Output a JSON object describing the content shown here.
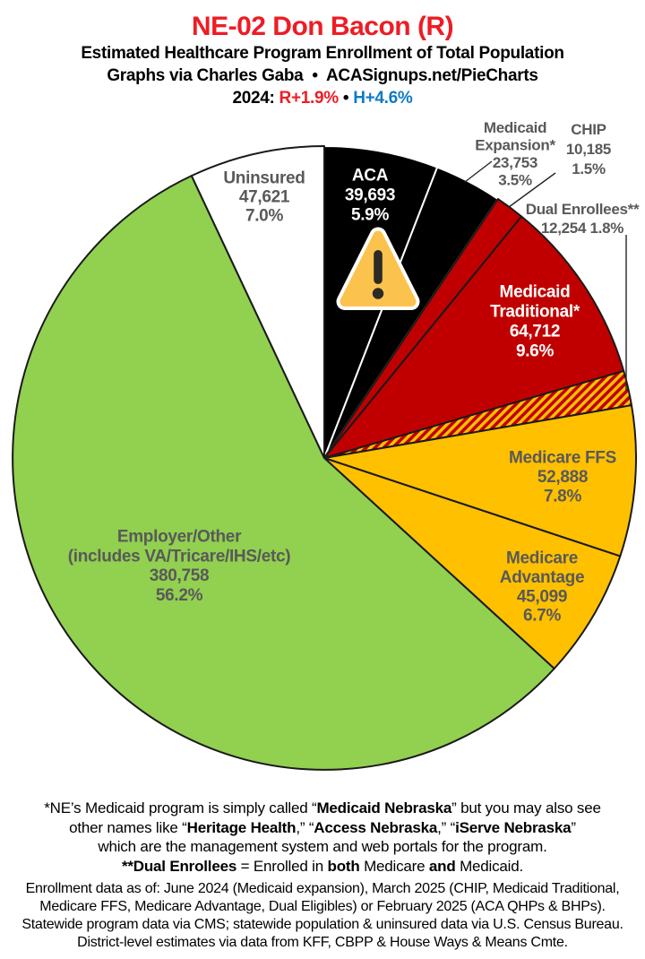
{
  "header": {
    "title": "NE-02 Don Bacon (R)",
    "subtitle": "Estimated Healthcare Program Enrollment of Total Population",
    "credit": "Graphs via Charles Gaba  •  ACASignups.net/PieCharts",
    "partisan_segments": [
      {
        "t": "2024: ",
        "c": "#000000"
      },
      {
        "t": "R+1.9%",
        "c": "#EE1C25"
      },
      {
        "t": " • ",
        "c": "#000000"
      },
      {
        "t": "H+4.6%",
        "c": "#0F7AC4"
      }
    ]
  },
  "chart_data": {
    "type": "pie",
    "title": "Estimated Healthcare Program Enrollment of Total Population",
    "start_angle_deg": 0,
    "direction": "clockwise",
    "legend_position": "labels-on-and-around-slices",
    "accent_colors": {
      "black_slice": "#000000",
      "red_slice": "#C00000",
      "gold_slice": "#FFC000",
      "green_slice": "#92D050",
      "white_slice": "#FFFFFF",
      "outside_label_gray": "#595959"
    },
    "slices": [
      {
        "id": "aca",
        "label": "ACA",
        "value": 39693,
        "pct": 5.9,
        "color": "#000000",
        "text_color": "#FFFFFF",
        "display_lines": [
          "ACA",
          "39,693",
          "5.9%"
        ]
      },
      {
        "id": "medicaid-expansion",
        "label": "Medicaid Expansion*",
        "value": 23753,
        "pct": 3.5,
        "color": "#000000",
        "text_color": "#595959",
        "display_lines": [
          "Medicaid",
          "Expansion*",
          "23,753",
          "3.5%"
        ]
      },
      {
        "id": "chip",
        "label": "CHIP",
        "value": 10185,
        "pct": 1.5,
        "color": "#C00000",
        "text_color": "#595959",
        "display_lines": [
          "CHIP",
          "10,185",
          "1.5%"
        ]
      },
      {
        "id": "medicaid-traditional",
        "label": "Medicaid Traditional*",
        "value": 64712,
        "pct": 9.6,
        "color": "#C00000",
        "text_color": "#FFFFFF",
        "display_lines": [
          "Medicaid",
          "Traditional*",
          "64,712",
          "9.6%"
        ]
      },
      {
        "id": "dual-enrollees",
        "label": "Dual Enrollees**",
        "value": 12254,
        "pct": 1.8,
        "color": "#C00000",
        "hatch": true,
        "hatch_color": "#FFC000",
        "text_color": "#595959",
        "display_lines": [
          "Dual Enrollees**",
          "12,254 1.8%"
        ]
      },
      {
        "id": "medicare-ffs",
        "label": "Medicare FFS",
        "value": 52888,
        "pct": 7.8,
        "color": "#FFC000",
        "text_color": "#595959",
        "display_lines": [
          "Medicare FFS",
          "52,888",
          "7.8%"
        ]
      },
      {
        "id": "medicare-advantage",
        "label": "Medicare Advantage",
        "value": 45099,
        "pct": 6.7,
        "color": "#FFC000",
        "text_color": "#595959",
        "display_lines": [
          "Medicare",
          "Advantage",
          "45,099",
          "6.7%"
        ]
      },
      {
        "id": "employer-other",
        "label": "Employer/Other (includes VA/Tricare/IHS/etc)",
        "value": 380758,
        "pct": 56.2,
        "color": "#92D050",
        "text_color": "#595959",
        "display_lines": [
          "Employer/Other",
          "(includes VA/Tricare/IHS/etc)",
          "380,758",
          "56.2%"
        ]
      },
      {
        "id": "uninsured",
        "label": "Uninsured",
        "value": 47621,
        "pct": 7.0,
        "color": "#FFFFFF",
        "text_color": "#595959",
        "display_lines": [
          "Uninsured",
          "47,621",
          "7.0%"
        ]
      }
    ],
    "warning_icon": "warning-triangle-on-aca-slices"
  },
  "footnote_medicaid": {
    "lines": [
      [
        {
          "t": "*NE’s Medicaid program is simply called “"
        },
        {
          "t": "Medicaid Nebraska",
          "b": true
        },
        {
          "t": "” but you may also see"
        }
      ],
      [
        {
          "t": "other names like “"
        },
        {
          "t": "Heritage Health",
          "b": true
        },
        {
          "t": ",” “"
        },
        {
          "t": "Access Nebraska",
          "b": true
        },
        {
          "t": ",” “"
        },
        {
          "t": "iServe Nebraska",
          "b": true
        },
        {
          "t": "”"
        }
      ],
      [
        {
          "t": "which are the management system and web portals for the program."
        }
      ],
      [
        {
          "t": "**Dual Enrollees",
          "b": true
        },
        {
          "t": " = Enrolled in "
        },
        {
          "t": "both",
          "b": true
        },
        {
          "t": " Medicare "
        },
        {
          "t": "and",
          "b": true
        },
        {
          "t": " Medicaid."
        }
      ]
    ]
  },
  "source_note": {
    "lines": [
      "Enrollment data as of: June 2024 (Medicaid expansion), March 2025 (CHIP, Medicaid Traditional,",
      "Medicare FFS, Medicare Advantage, Dual Eligibles) or February 2025 (ACA QHPs & BHPs).",
      "Statewide program data via CMS; statewide population & uninsured data via U.S. Census Bureau.",
      "District-level estimates via data from KFF, CBPP & House Ways & Means Cmte."
    ]
  }
}
